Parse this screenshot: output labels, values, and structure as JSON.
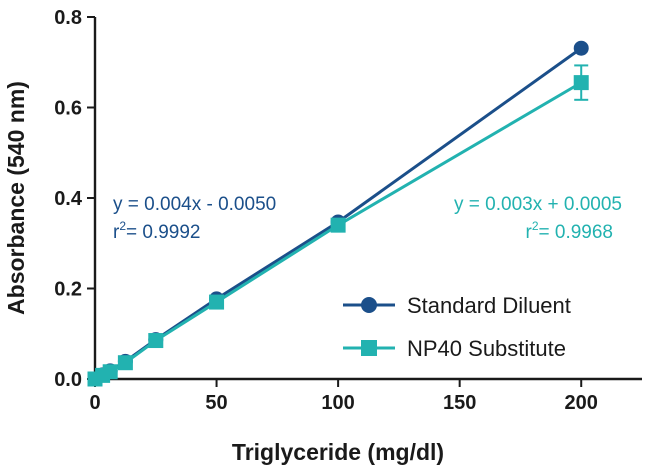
{
  "chart_data": {
    "type": "line",
    "title": "",
    "xlabel": "Triglyceride (mg/dl)",
    "ylabel": "Absorbance (540 nm)",
    "xlim": [
      0,
      225
    ],
    "ylim": [
      0,
      0.8
    ],
    "xticks": [
      0,
      50,
      100,
      150,
      200
    ],
    "xtick_labels": [
      "0",
      "50",
      "100",
      "150",
      "200"
    ],
    "yticks": [
      0,
      0.2,
      0.4,
      0.6,
      0.8
    ],
    "ytick_labels": [
      "0.0",
      "0.2",
      "0.4",
      "0.6",
      "0.8"
    ],
    "grid": false,
    "legend_position": "bottom-right",
    "series": [
      {
        "name": "Standard Diluent",
        "color": "#1b4f8a",
        "marker": "circle",
        "x": [
          0,
          3.125,
          6.25,
          12.5,
          25,
          50,
          100,
          200
        ],
        "y": [
          0.0,
          0.009,
          0.018,
          0.039,
          0.087,
          0.177,
          0.347,
          0.731
        ],
        "error": [
          0,
          0,
          0,
          0,
          0,
          0,
          0,
          0
        ],
        "fit": {
          "slope": 0.004,
          "intercept": -0.005
        },
        "equation": "y = 0.004x - 0.0050",
        "r2_prefix": "r",
        "r2_sup": "2",
        "r2_value": "= 0.9992"
      },
      {
        "name": "NP40 Substitute",
        "color": "#22b2b0",
        "marker": "square",
        "x": [
          0,
          3.125,
          6.25,
          12.5,
          25,
          50,
          100,
          200
        ],
        "y": [
          0.0,
          0.008,
          0.016,
          0.036,
          0.085,
          0.17,
          0.34,
          0.655
        ],
        "error": [
          0,
          0,
          0,
          0,
          0,
          0,
          0,
          0.038
        ],
        "fit": {
          "slope": 0.003,
          "intercept": 0.0005
        },
        "equation": "y = 0.003x + 0.0005",
        "r2_prefix": "r",
        "r2_sup": "2",
        "r2_value": "= 0.9968"
      }
    ]
  }
}
